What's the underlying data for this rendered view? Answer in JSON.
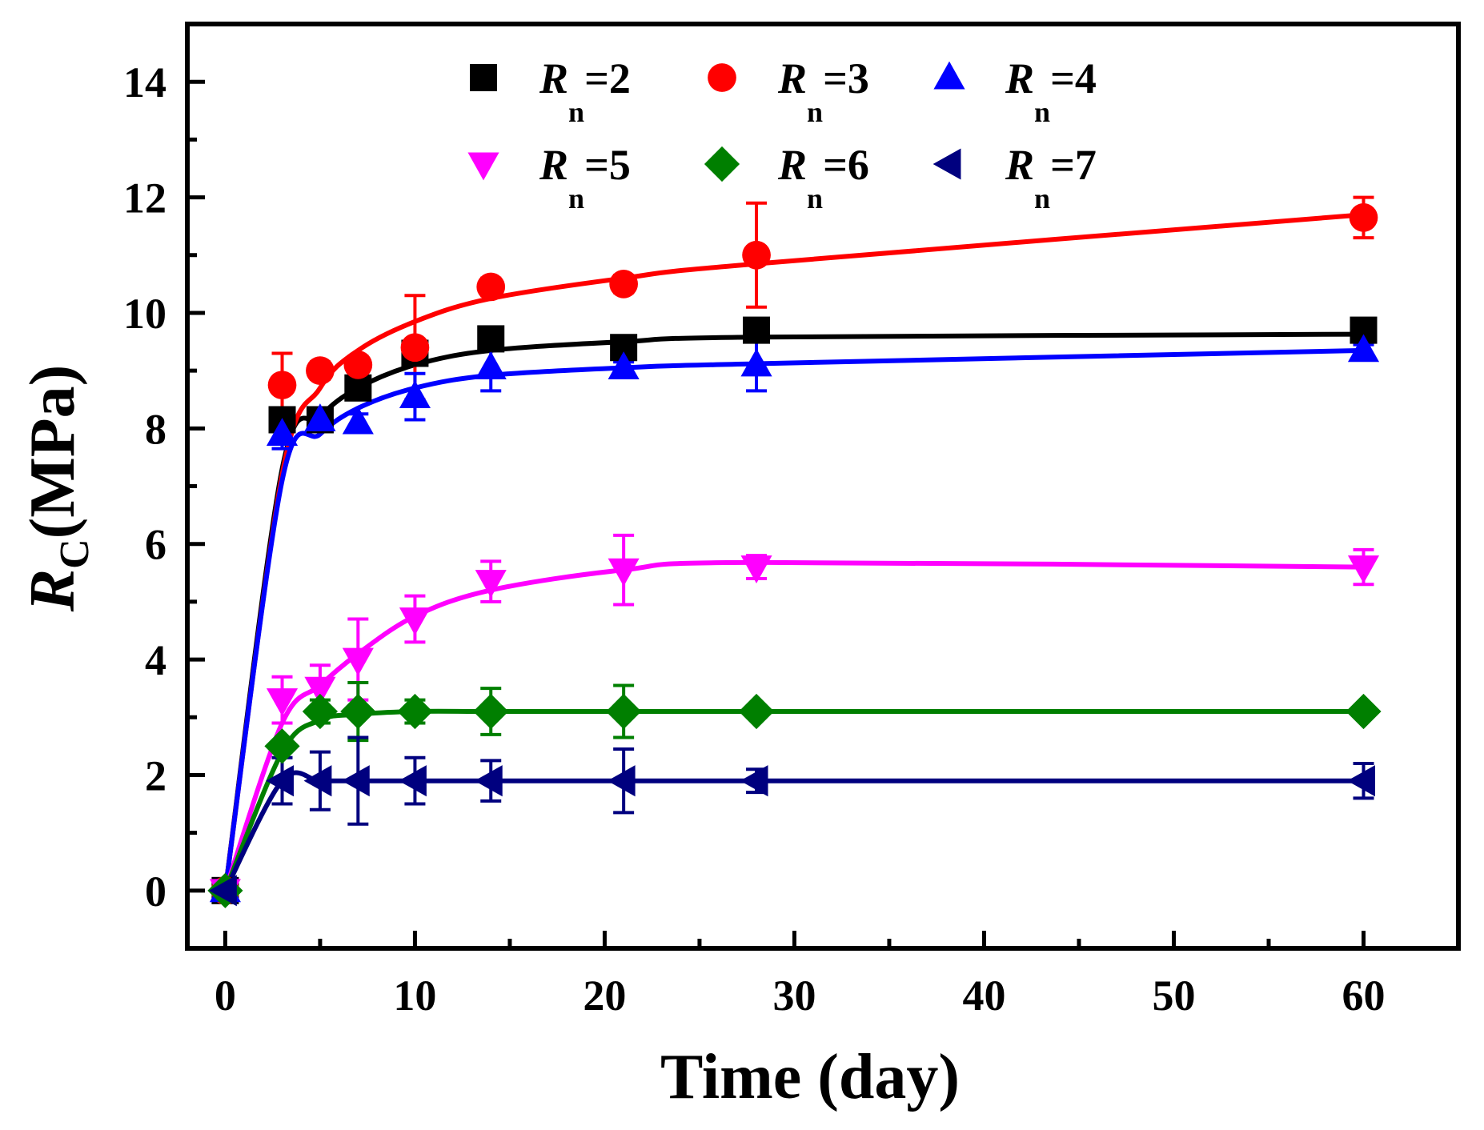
{
  "chart_data": {
    "type": "scatter",
    "title": "",
    "xlabel": "Time (day)",
    "ylabel": {
      "symbol": "R",
      "subscript": "C",
      "unit": "(MPa)"
    },
    "xlim": [
      -2,
      65
    ],
    "ylim": [
      -1,
      15
    ],
    "xticks": [
      0,
      10,
      20,
      30,
      40,
      50,
      60
    ],
    "xticks_minor": [
      5,
      15,
      25,
      35,
      45,
      55
    ],
    "yticks": [
      0,
      2,
      4,
      6,
      8,
      10,
      12,
      14
    ],
    "yticks_minor": [
      1,
      3,
      5,
      7,
      9,
      11,
      13
    ],
    "x": [
      0,
      3,
      5,
      7,
      10,
      14,
      21,
      28,
      60
    ],
    "legend_position": "top-center",
    "series": [
      {
        "name": "Rn=2",
        "var": "R",
        "sub": "n",
        "eq": "=2",
        "marker": "square",
        "color": "#000000",
        "values": [
          0,
          8.15,
          8.15,
          8.7,
          9.3,
          9.55,
          9.4,
          9.7,
          9.7
        ],
        "errors": [
          0.1,
          0.15,
          0.15,
          0.15,
          0.2,
          0.1,
          0.1,
          0.2,
          0.1
        ],
        "fit": [
          0,
          7.3,
          8.2,
          8.7,
          9.1,
          9.35,
          9.5,
          9.58,
          9.63
        ]
      },
      {
        "name": "Rn=3",
        "var": "R",
        "sub": "n",
        "eq": "=3",
        "marker": "circle",
        "color": "#ff0000",
        "values": [
          0,
          8.75,
          9.0,
          9.1,
          9.4,
          10.45,
          10.5,
          11.0,
          11.65
        ],
        "errors": [
          0.1,
          0.55,
          0.15,
          0.15,
          0.9,
          0.15,
          0.15,
          0.9,
          0.35
        ],
        "fit": [
          0,
          7.2,
          8.7,
          9.35,
          9.85,
          10.25,
          10.6,
          10.85,
          11.7
        ]
      },
      {
        "name": "Rn=4",
        "var": "R",
        "sub": "n",
        "eq": "=4",
        "marker": "triangle-up",
        "color": "#0000ff",
        "values": [
          0,
          7.9,
          8.15,
          8.1,
          8.55,
          9.05,
          9.05,
          9.1,
          9.35
        ],
        "errors": [
          0.1,
          0.25,
          0.15,
          0.15,
          0.4,
          0.4,
          0.1,
          0.45,
          0.1
        ],
        "fit": [
          0,
          7.1,
          7.9,
          8.35,
          8.7,
          8.92,
          9.05,
          9.12,
          9.35
        ]
      },
      {
        "name": "Rn=5",
        "var": "R",
        "sub": "n",
        "eq": "=5",
        "marker": "triangle-down",
        "color": "#ff00ff",
        "values": [
          0,
          3.3,
          3.5,
          4.0,
          4.7,
          5.35,
          5.55,
          5.6,
          5.6
        ],
        "errors": [
          0.1,
          0.4,
          0.4,
          0.7,
          0.4,
          0.35,
          0.6,
          0.2,
          0.3
        ],
        "fit": [
          0,
          2.9,
          3.55,
          4.1,
          4.75,
          5.2,
          5.55,
          5.68,
          5.6
        ]
      },
      {
        "name": "Rn=6",
        "var": "R",
        "sub": "n",
        "eq": "=6",
        "marker": "diamond",
        "color": "#007f00",
        "values": [
          0,
          2.5,
          3.1,
          3.1,
          3.1,
          3.1,
          3.1,
          3.1,
          3.1
        ],
        "errors": [
          0.1,
          0.1,
          0.2,
          0.5,
          0.2,
          0.4,
          0.45,
          0.1,
          0.1
        ],
        "fit": [
          0,
          2.4,
          2.95,
          3.05,
          3.1,
          3.1,
          3.1,
          3.1,
          3.1
        ]
      },
      {
        "name": "Rn=7",
        "var": "R",
        "sub": "n",
        "eq": "=7",
        "marker": "triangle-left",
        "color": "#00007f",
        "values": [
          0,
          1.9,
          1.9,
          1.9,
          1.9,
          1.9,
          1.9,
          1.9,
          1.9
        ],
        "errors": [
          0.1,
          0.4,
          0.5,
          0.75,
          0.4,
          0.35,
          0.55,
          0.2,
          0.3
        ],
        "fit": [
          0,
          1.9,
          1.9,
          1.9,
          1.9,
          1.9,
          1.9,
          1.9,
          1.9
        ]
      }
    ]
  }
}
